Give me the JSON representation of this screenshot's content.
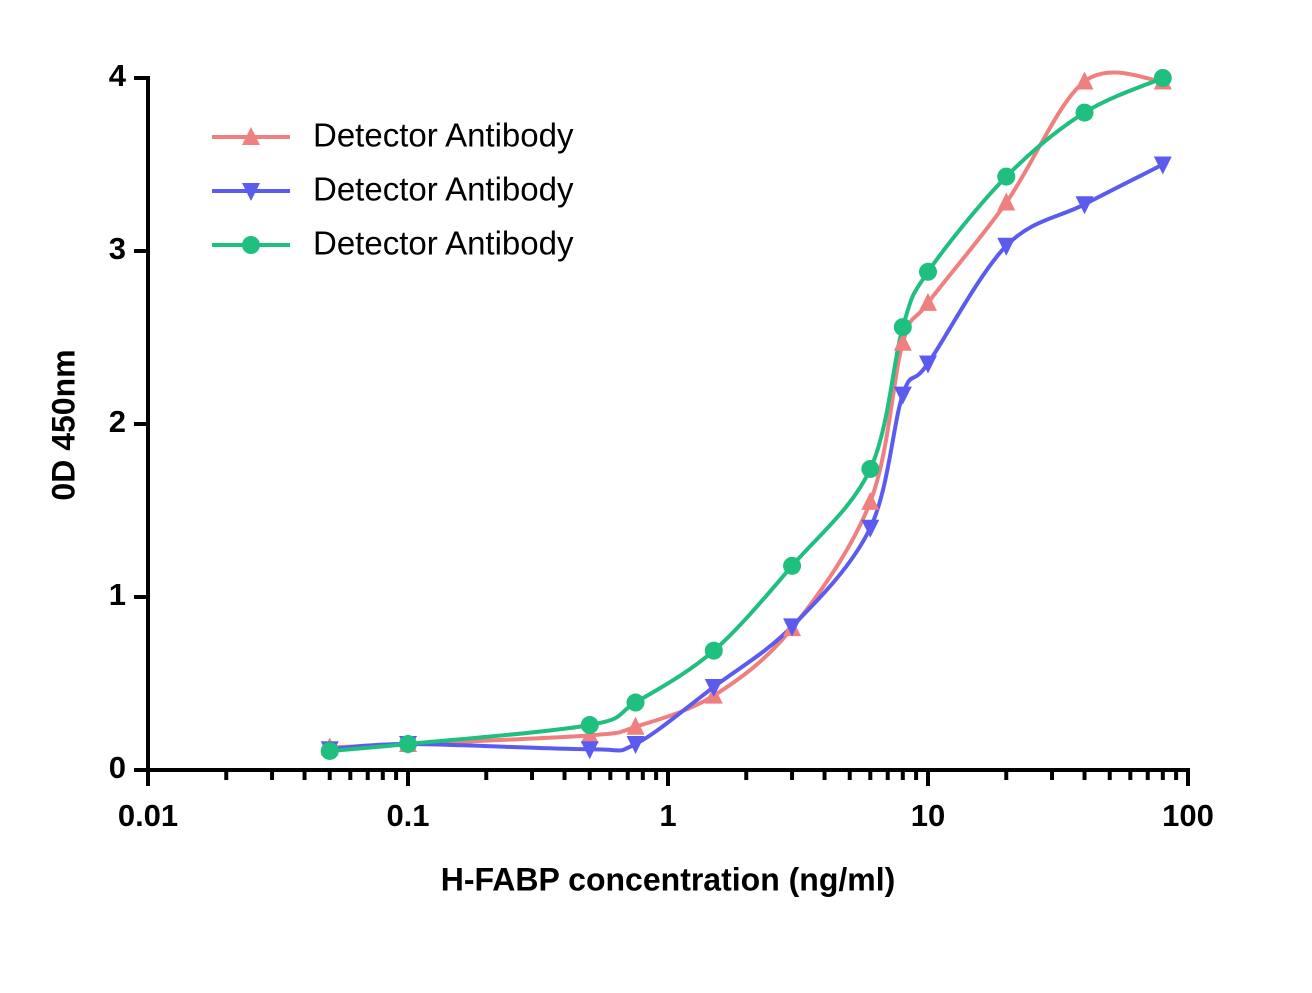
{
  "chart_data": {
    "type": "line",
    "xscale": "log",
    "x_label": "H-FABP concentration (ng/ml)",
    "y_label": "0D 450nm",
    "x": [
      0.05,
      0.1,
      0.5,
      0.75,
      1.5,
      3,
      6,
      8,
      10,
      20,
      40,
      80
    ],
    "series": [
      {
        "name": "Detector Antibody",
        "color": "#f07f7f",
        "marker": "triangle-up",
        "values": [
          0.13,
          0.15,
          0.2,
          0.25,
          0.43,
          0.82,
          1.55,
          2.47,
          2.7,
          3.28,
          3.98,
          3.98
        ]
      },
      {
        "name": "Detector Antibody",
        "color": "#5b5bf0",
        "marker": "triangle-down",
        "values": [
          0.12,
          0.15,
          0.12,
          0.15,
          0.48,
          0.83,
          1.4,
          2.17,
          2.35,
          3.03,
          3.27,
          3.5
        ]
      },
      {
        "name": "Detector Antibody",
        "color": "#1fbf7f",
        "marker": "circle",
        "values": [
          0.11,
          0.15,
          0.26,
          0.39,
          0.69,
          1.18,
          1.74,
          2.56,
          2.88,
          3.43,
          3.8,
          4.0
        ]
      }
    ],
    "xlim": [
      0.01,
      100
    ],
    "xticks": [
      0.01,
      0.1,
      1,
      10,
      100
    ],
    "ylim": [
      0,
      4
    ],
    "yticks": [
      0,
      1,
      2,
      3,
      4
    ],
    "legend": "upper-left",
    "grid": false
  }
}
